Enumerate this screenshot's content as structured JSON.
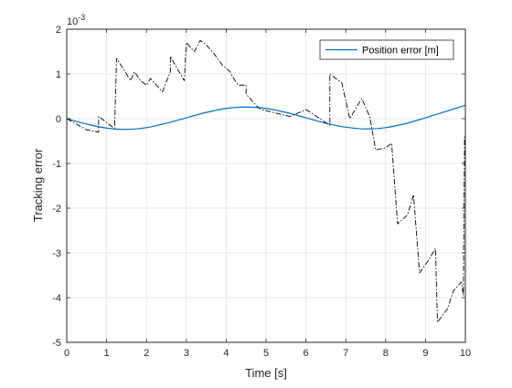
{
  "chart_data": {
    "type": "line",
    "xlabel": "Time [s]",
    "ylabel": "Tracking error",
    "exponent_base": "10",
    "exponent_power": "-3",
    "xlim": [
      0,
      10
    ],
    "ylim": [
      -5,
      2
    ],
    "x_ticks": [
      0,
      1,
      2,
      3,
      4,
      5,
      6,
      7,
      8,
      9,
      10
    ],
    "y_ticks": [
      -5,
      -4,
      -3,
      -2,
      -1,
      0,
      1,
      2
    ],
    "grid": true,
    "legend_position": "top-right",
    "series": [
      {
        "name": "Position error [m]",
        "style": "solid",
        "color": "#0072BD",
        "x": [
          0,
          0.5,
          1.0,
          1.5,
          2.0,
          2.5,
          3.0,
          3.5,
          4.0,
          4.5,
          5.0,
          5.5,
          6.0,
          6.5,
          7.0,
          7.5,
          8.0,
          8.5,
          9.0,
          9.5,
          10.0
        ],
        "y": [
          0.0,
          -0.12,
          -0.21,
          -0.24,
          -0.2,
          -0.1,
          0.02,
          0.14,
          0.23,
          0.26,
          0.23,
          0.14,
          0.02,
          -0.1,
          -0.19,
          -0.23,
          -0.2,
          -0.11,
          0.02,
          0.16,
          0.3
        ]
      },
      {
        "name": "",
        "style": "dashdot",
        "color": "#000000",
        "x": [
          0.0,
          0.5,
          0.8,
          0.8,
          1.2,
          1.25,
          1.5,
          1.6,
          1.7,
          1.85,
          2.0,
          2.1,
          2.25,
          2.4,
          2.6,
          2.6,
          2.75,
          2.95,
          3.0,
          3.2,
          3.35,
          3.5,
          3.7,
          3.9,
          4.1,
          4.15,
          4.3,
          4.5,
          4.5,
          4.8,
          4.9,
          5.6,
          6.0,
          6.1,
          6.6,
          6.6,
          6.9,
          7.1,
          7.4,
          7.6,
          7.75,
          8.0,
          8.15,
          8.3,
          8.55,
          8.7,
          8.85,
          9.05,
          9.25,
          9.3,
          9.55,
          9.7,
          9.9,
          9.95,
          9.98
        ],
        "y": [
          0.0,
          -0.25,
          -0.3,
          0.05,
          -0.22,
          1.35,
          1.0,
          0.85,
          1.05,
          0.85,
          0.75,
          0.9,
          0.75,
          0.6,
          1.05,
          1.4,
          1.15,
          0.85,
          1.7,
          1.5,
          1.75,
          1.65,
          1.45,
          1.2,
          1.05,
          0.95,
          0.75,
          0.75,
          0.55,
          0.25,
          0.2,
          0.05,
          0.2,
          0.15,
          -0.15,
          1.0,
          0.8,
          0.0,
          0.45,
          0.05,
          -0.7,
          -0.65,
          -0.55,
          -2.35,
          -2.15,
          -1.7,
          -3.45,
          -3.2,
          -2.9,
          -4.55,
          -4.25,
          -3.85,
          -3.65,
          -3.95,
          -0.4
        ]
      }
    ]
  }
}
